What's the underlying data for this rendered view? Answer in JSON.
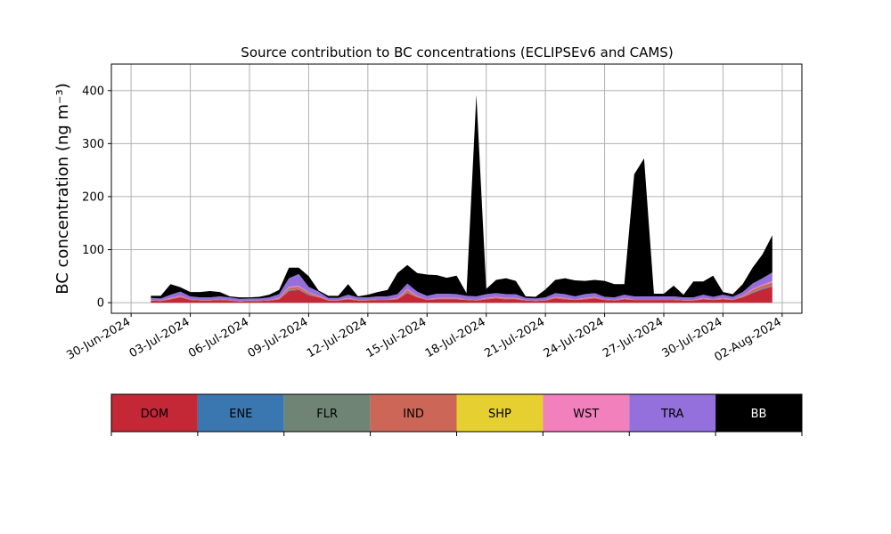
{
  "chart_data": {
    "type": "area",
    "stacked": true,
    "title": "Source contribution to BC concentrations (ECLIPSEv6 and CAMS)",
    "ylabel": "BC concentration (ng m⁻³)",
    "xlabel": "",
    "xlim": [
      "2024-06-29",
      "2024-08-03"
    ],
    "ylim": [
      -20,
      450
    ],
    "grid": true,
    "x_ticks": [
      "30-Jun-2024",
      "03-Jul-2024",
      "06-Jul-2024",
      "09-Jul-2024",
      "12-Jul-2024",
      "15-Jul-2024",
      "18-Jul-2024",
      "21-Jul-2024",
      "24-Jul-2024",
      "27-Jul-2024",
      "30-Jul-2024",
      "02-Aug-2024"
    ],
    "y_ticks": [
      0,
      100,
      200,
      300,
      400
    ],
    "dates": [
      "2024-07-01",
      "2024-07-01T12:00",
      "2024-07-02",
      "2024-07-02T12:00",
      "2024-07-03",
      "2024-07-03T12:00",
      "2024-07-04",
      "2024-07-04T12:00",
      "2024-07-05",
      "2024-07-05T12:00",
      "2024-07-06",
      "2024-07-06T12:00",
      "2024-07-07",
      "2024-07-07T12:00",
      "2024-07-08",
      "2024-07-08T12:00",
      "2024-07-09",
      "2024-07-09T12:00",
      "2024-07-10",
      "2024-07-10T12:00",
      "2024-07-11",
      "2024-07-11T12:00",
      "2024-07-12",
      "2024-07-12T12:00",
      "2024-07-13",
      "2024-07-13T12:00",
      "2024-07-14",
      "2024-07-14T12:00",
      "2024-07-15",
      "2024-07-15T12:00",
      "2024-07-16",
      "2024-07-16T12:00",
      "2024-07-17",
      "2024-07-17T12:00",
      "2024-07-18",
      "2024-07-18T12:00",
      "2024-07-19",
      "2024-07-19T12:00",
      "2024-07-20",
      "2024-07-20T12:00",
      "2024-07-21",
      "2024-07-21T12:00",
      "2024-07-22",
      "2024-07-22T12:00",
      "2024-07-23",
      "2024-07-23T12:00",
      "2024-07-24",
      "2024-07-24T12:00",
      "2024-07-25",
      "2024-07-25T12:00",
      "2024-07-26",
      "2024-07-26T12:00",
      "2024-07-27",
      "2024-07-27T12:00",
      "2024-07-28",
      "2024-07-28T12:00",
      "2024-07-29",
      "2024-07-29T12:00",
      "2024-07-30",
      "2024-07-30T12:00",
      "2024-07-31",
      "2024-07-31T12:00",
      "2024-08-01",
      "2024-08-01T12:00"
    ],
    "series": [
      {
        "name": "DOM",
        "color": "#c42736",
        "values": [
          4,
          3,
          6,
          10,
          5,
          4,
          4,
          5,
          4,
          2,
          3,
          3,
          4,
          6,
          22,
          24,
          14,
          10,
          4,
          4,
          6,
          4,
          4,
          5,
          5,
          6,
          18,
          10,
          5,
          6,
          6,
          6,
          5,
          4,
          6,
          8,
          6,
          6,
          4,
          3,
          4,
          8,
          6,
          5,
          6,
          8,
          5,
          4,
          6,
          5,
          5,
          5,
          5,
          5,
          4,
          4,
          6,
          5,
          6,
          5,
          10,
          18,
          25,
          30
        ]
      },
      {
        "name": "ENE",
        "color": "#3a77b0",
        "values": [
          0,
          0,
          0,
          0,
          0,
          0,
          0,
          0,
          0,
          0,
          0,
          0,
          0,
          0,
          1,
          1,
          1,
          0,
          0,
          0,
          0,
          0,
          0,
          0,
          0,
          0,
          1,
          0,
          0,
          0,
          0,
          0,
          0,
          0,
          0,
          0,
          0,
          0,
          0,
          0,
          0,
          0,
          0,
          0,
          0,
          0,
          0,
          0,
          0,
          0,
          0,
          0,
          0,
          0,
          0,
          0,
          0,
          0,
          0,
          0,
          0,
          1,
          1,
          1
        ]
      },
      {
        "name": "FLR",
        "color": "#6f8474",
        "values": [
          0,
          0,
          0,
          0,
          0,
          0,
          0,
          0,
          0,
          0,
          0,
          0,
          0,
          0,
          1,
          1,
          1,
          0,
          0,
          0,
          0,
          0,
          0,
          0,
          0,
          0,
          1,
          0,
          0,
          0,
          0,
          0,
          0,
          0,
          0,
          0,
          0,
          0,
          0,
          0,
          0,
          0,
          0,
          0,
          0,
          0,
          0,
          0,
          0,
          0,
          0,
          0,
          0,
          0,
          0,
          0,
          0,
          0,
          0,
          0,
          0,
          1,
          1,
          1
        ]
      },
      {
        "name": "IND",
        "color": "#cc6757",
        "values": [
          1,
          1,
          2,
          2,
          1,
          1,
          1,
          1,
          1,
          1,
          1,
          1,
          1,
          2,
          4,
          4,
          3,
          2,
          1,
          1,
          2,
          1,
          1,
          1,
          1,
          2,
          4,
          2,
          1,
          2,
          2,
          2,
          1,
          1,
          2,
          2,
          2,
          2,
          1,
          1,
          1,
          2,
          2,
          1,
          2,
          2,
          1,
          1,
          2,
          1,
          1,
          1,
          1,
          1,
          1,
          1,
          2,
          1,
          2,
          1,
          2,
          4,
          5,
          6
        ]
      },
      {
        "name": "SHP",
        "color": "#e6cf30",
        "values": [
          0,
          0,
          0,
          0,
          0,
          0,
          0,
          0,
          0,
          0,
          0,
          0,
          0,
          0,
          0,
          0,
          0,
          0,
          0,
          0,
          0,
          0,
          0,
          0,
          0,
          0,
          0,
          0,
          0,
          0,
          0,
          0,
          0,
          0,
          0,
          0,
          0,
          0,
          0,
          0,
          0,
          0,
          0,
          0,
          0,
          0,
          0,
          0,
          0,
          0,
          0,
          0,
          0,
          0,
          0,
          0,
          0,
          0,
          0,
          0,
          0,
          0,
          0,
          0
        ]
      },
      {
        "name": "WST",
        "color": "#f180bd",
        "values": [
          0,
          0,
          1,
          1,
          0,
          0,
          0,
          0,
          0,
          0,
          0,
          0,
          0,
          1,
          2,
          2,
          1,
          1,
          0,
          0,
          1,
          0,
          0,
          0,
          0,
          1,
          2,
          1,
          0,
          1,
          1,
          1,
          0,
          0,
          1,
          1,
          1,
          1,
          0,
          0,
          0,
          1,
          1,
          0,
          1,
          1,
          0,
          0,
          1,
          0,
          0,
          0,
          0,
          0,
          0,
          0,
          1,
          0,
          1,
          0,
          1,
          2,
          2,
          3
        ]
      },
      {
        "name": "TRA",
        "color": "#9370db",
        "values": [
          4,
          4,
          6,
          8,
          6,
          5,
          5,
          6,
          5,
          4,
          4,
          4,
          5,
          7,
          16,
          22,
          10,
          8,
          4,
          4,
          6,
          5,
          5,
          6,
          6,
          7,
          10,
          8,
          7,
          8,
          8,
          7,
          7,
          7,
          7,
          7,
          7,
          7,
          4,
          4,
          5,
          7,
          7,
          6,
          7,
          7,
          5,
          5,
          6,
          6,
          6,
          6,
          6,
          6,
          5,
          5,
          6,
          5,
          6,
          5,
          7,
          10,
          12,
          16
        ]
      },
      {
        "name": "BB",
        "color": "#000000",
        "values": [
          4,
          5,
          20,
          8,
          8,
          10,
          12,
          8,
          2,
          3,
          2,
          3,
          5,
          8,
          20,
          12,
          20,
          2,
          4,
          4,
          20,
          2,
          5,
          8,
          12,
          40,
          35,
          35,
          40,
          35,
          30,
          35,
          5,
          380,
          10,
          25,
          30,
          25,
          3,
          3,
          15,
          25,
          30,
          30,
          25,
          25,
          30,
          25,
          20,
          230,
          260,
          5,
          5,
          20,
          5,
          30,
          25,
          40,
          5,
          5,
          15,
          30,
          45,
          70
        ]
      }
    ],
    "legend": {
      "placement": "bottom-colorbar",
      "entries": [
        {
          "name": "DOM",
          "color": "#c42736",
          "text_color": "#000000"
        },
        {
          "name": "ENE",
          "color": "#3a77b0",
          "text_color": "#000000"
        },
        {
          "name": "FLR",
          "color": "#6f8474",
          "text_color": "#000000"
        },
        {
          "name": "IND",
          "color": "#cc6757",
          "text_color": "#000000"
        },
        {
          "name": "SHP",
          "color": "#e6cf30",
          "text_color": "#000000"
        },
        {
          "name": "WST",
          "color": "#f180bd",
          "text_color": "#000000"
        },
        {
          "name": "TRA",
          "color": "#9370db",
          "text_color": "#000000"
        },
        {
          "name": "BB",
          "color": "#000000",
          "text_color": "#ffffff"
        }
      ]
    }
  }
}
